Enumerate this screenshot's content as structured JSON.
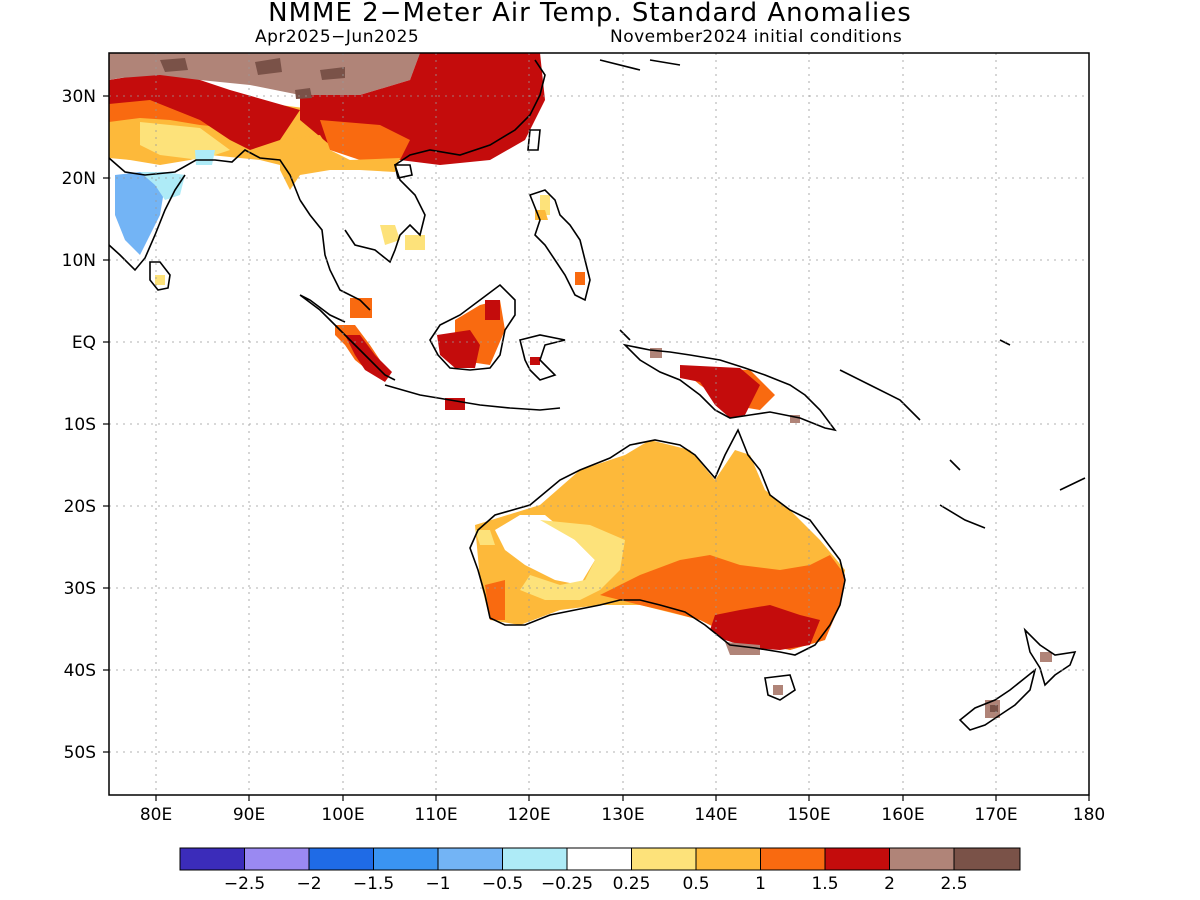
{
  "title": "NMME 2−Meter Air Temp. Standard Anomalies",
  "period": "Apr2025−Jun2025",
  "initial_conditions": "November2024 initial conditions",
  "lat_labels": [
    {
      "lat": 30,
      "text": "30N"
    },
    {
      "lat": 20,
      "text": "20N"
    },
    {
      "lat": 10,
      "text": "10N"
    },
    {
      "lat": 0,
      "text": "EQ"
    },
    {
      "lat": -10,
      "text": "10S"
    },
    {
      "lat": -20,
      "text": "20S"
    },
    {
      "lat": -30,
      "text": "30S"
    },
    {
      "lat": -40,
      "text": "40S"
    },
    {
      "lat": -50,
      "text": "50S"
    }
  ],
  "lon_labels": [
    {
      "lon": 80,
      "text": "80E"
    },
    {
      "lon": 90,
      "text": "90E"
    },
    {
      "lon": 100,
      "text": "100E"
    },
    {
      "lon": 110,
      "text": "110E"
    },
    {
      "lon": 120,
      "text": "120E"
    },
    {
      "lon": 130,
      "text": "130E"
    },
    {
      "lon": 140,
      "text": "140E"
    },
    {
      "lon": 150,
      "text": "150E"
    },
    {
      "lon": 160,
      "text": "160E"
    },
    {
      "lon": 170,
      "text": "170E"
    },
    {
      "lon": 180,
      "text": "180"
    }
  ],
  "colorbar": {
    "colors": [
      "#3b2cba",
      "#9a89f2",
      "#1f6be6",
      "#3a94f2",
      "#73b4f5",
      "#aeebf7",
      "#ffffff",
      "#fde27a",
      "#fdb93a",
      "#f96a10",
      "#c40c0c",
      "#b08478",
      "#7a5248"
    ],
    "labels": [
      "−2.5",
      "−2",
      "−1.5",
      "−1",
      "−0.5",
      "−0.25",
      "0.25",
      "0.5",
      "1",
      "1.5",
      "2",
      "2.5"
    ]
  }
}
